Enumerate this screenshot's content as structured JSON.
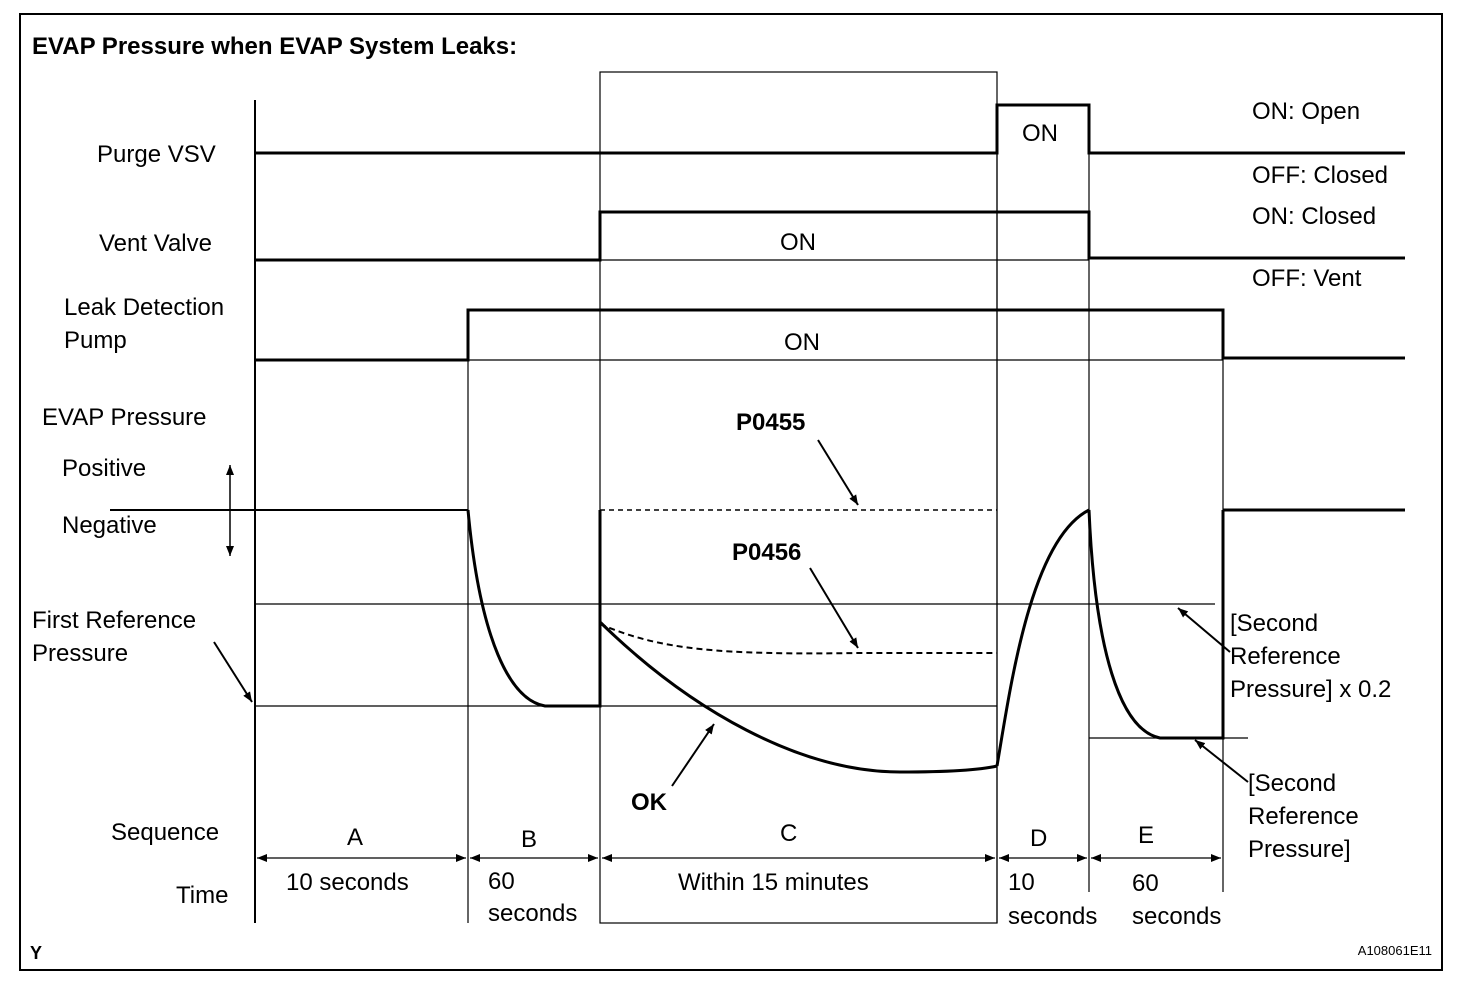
{
  "title": "EVAP Pressure when EVAP System Leaks:",
  "signals": {
    "purge_vsv": "Purge VSV",
    "vent_valve": "Vent Valve",
    "leak_pump_line1": "Leak Detection",
    "leak_pump_line2": "Pump",
    "evap_pressure": "EVAP Pressure",
    "positive": "Positive",
    "negative": "Negative",
    "first_ref_line1": "First Reference",
    "first_ref_line2": "Pressure",
    "sequence": "Sequence",
    "time": "Time"
  },
  "state_labels": {
    "purge_on": "ON: Open",
    "purge_off": "OFF: Closed",
    "vent_on": "ON: Closed",
    "vent_off": "OFF: Vent",
    "on_d": "ON",
    "on_vent": "ON",
    "on_pump": "ON"
  },
  "codes": {
    "p0455": "P0455",
    "p0456": "P0456",
    "ok": "OK"
  },
  "second_ref_02": {
    "line1": "[Second",
    "line2": "Reference",
    "line3": "Pressure] x 0.2"
  },
  "second_ref": {
    "line1": "[Second",
    "line2": "Reference",
    "line3": "Pressure]"
  },
  "sequence": {
    "a": "A",
    "b": "B",
    "c": "C",
    "d": "D",
    "e": "E"
  },
  "times": {
    "a": "10 seconds",
    "b1": "60",
    "b2": "seconds",
    "c": "Within 15 minutes",
    "d1": "10",
    "d2": "seconds",
    "e1": "60",
    "e2": "seconds"
  },
  "footer": {
    "left": "Y",
    "right": "A108061E11"
  }
}
